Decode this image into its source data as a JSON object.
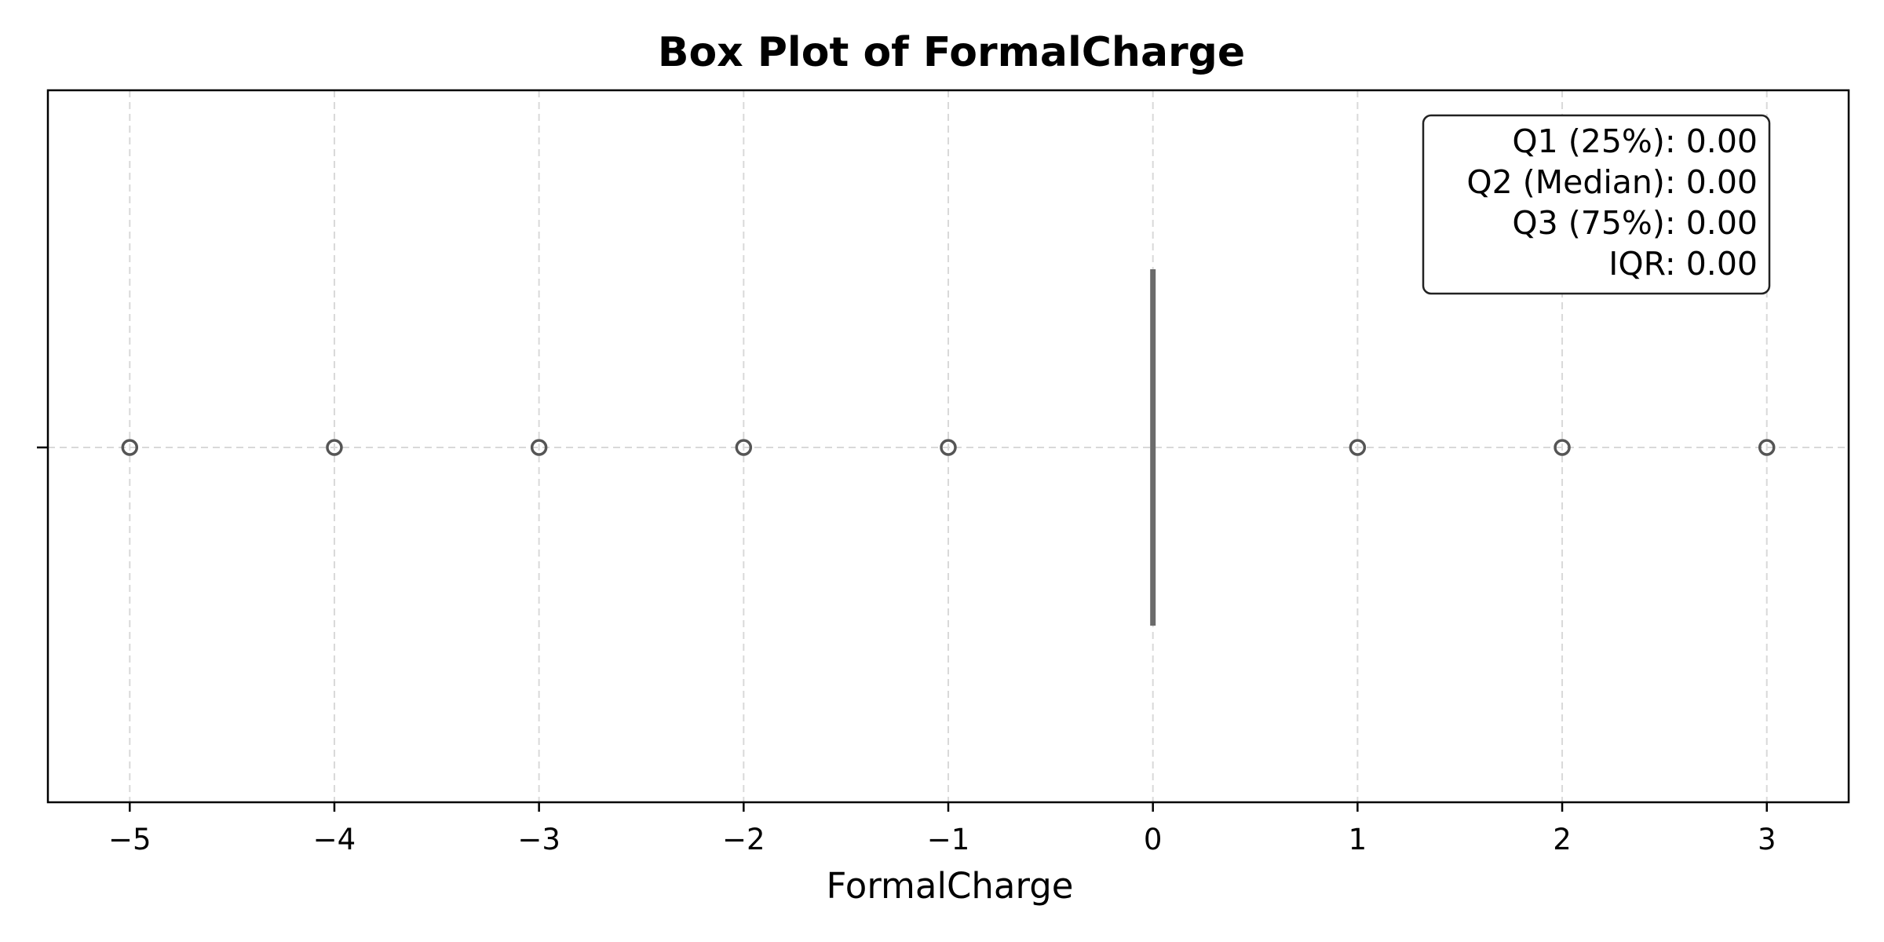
{
  "chart_data": {
    "type": "box",
    "orientation": "horizontal",
    "title": "Box Plot of FormalCharge",
    "xlabel": "FormalCharge",
    "xlim": [
      -5.4,
      3.4
    ],
    "xticks": [
      -5,
      -4,
      -3,
      -2,
      -1,
      0,
      1,
      2,
      3
    ],
    "xtick_labels": [
      "−5",
      "−4",
      "−3",
      "−2",
      "−1",
      "0",
      "1",
      "2",
      "3"
    ],
    "grid": true,
    "box": {
      "q1": 0,
      "median": 0,
      "q3": 0,
      "whisker_low": 0,
      "whisker_high": 0
    },
    "outliers": [
      -5,
      -4,
      -3,
      -2,
      -1,
      1,
      2,
      3
    ],
    "stats_legend": {
      "placement": "top-right",
      "lines": [
        "Q1 (25%): 0.00",
        "Q2 (Median): 0.00",
        "Q3 (75%): 0.00",
        "IQR: 0.00"
      ]
    },
    "colors": {
      "box": "#6b6b6b",
      "grid": "#d9d9d9",
      "outlier": "#555555"
    }
  }
}
